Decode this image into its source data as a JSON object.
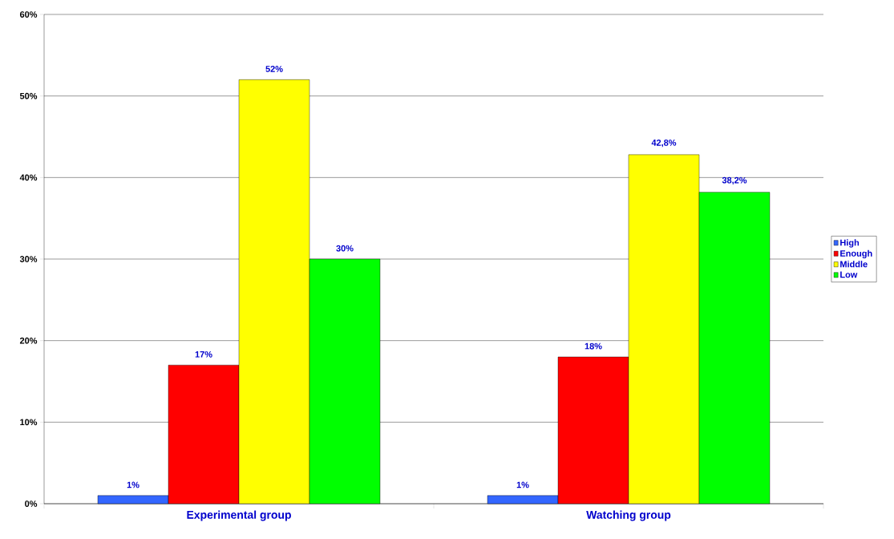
{
  "chart_data": {
    "type": "bar",
    "categories": [
      "Experimental group",
      "Watching group"
    ],
    "series": [
      {
        "name": "High",
        "color": "#3366ff",
        "values": [
          1,
          1
        ],
        "value_labels": [
          "1%",
          "1%"
        ]
      },
      {
        "name": "Enough",
        "color": "#ff0000",
        "values": [
          17,
          18
        ],
        "value_labels": [
          "17%",
          "18%"
        ]
      },
      {
        "name": "Middle",
        "color": "#ffff00",
        "values": [
          52,
          42.8
        ],
        "value_labels": [
          "52%",
          "42,8%"
        ]
      },
      {
        "name": "Low",
        "color": "#00ff00",
        "values": [
          30,
          38.2
        ],
        "value_labels": [
          "30%",
          "38,2%"
        ]
      }
    ],
    "ylim": [
      0,
      60
    ],
    "yticks": [
      {
        "value": 0,
        "label": "0%"
      },
      {
        "value": 10,
        "label": "10%"
      },
      {
        "value": 20,
        "label": "20%"
      },
      {
        "value": 30,
        "label": "30%"
      },
      {
        "value": 40,
        "label": "40%"
      },
      {
        "value": 50,
        "label": "50%"
      },
      {
        "value": 60,
        "label": "60%"
      }
    ],
    "grid": "y",
    "legend": "right"
  }
}
